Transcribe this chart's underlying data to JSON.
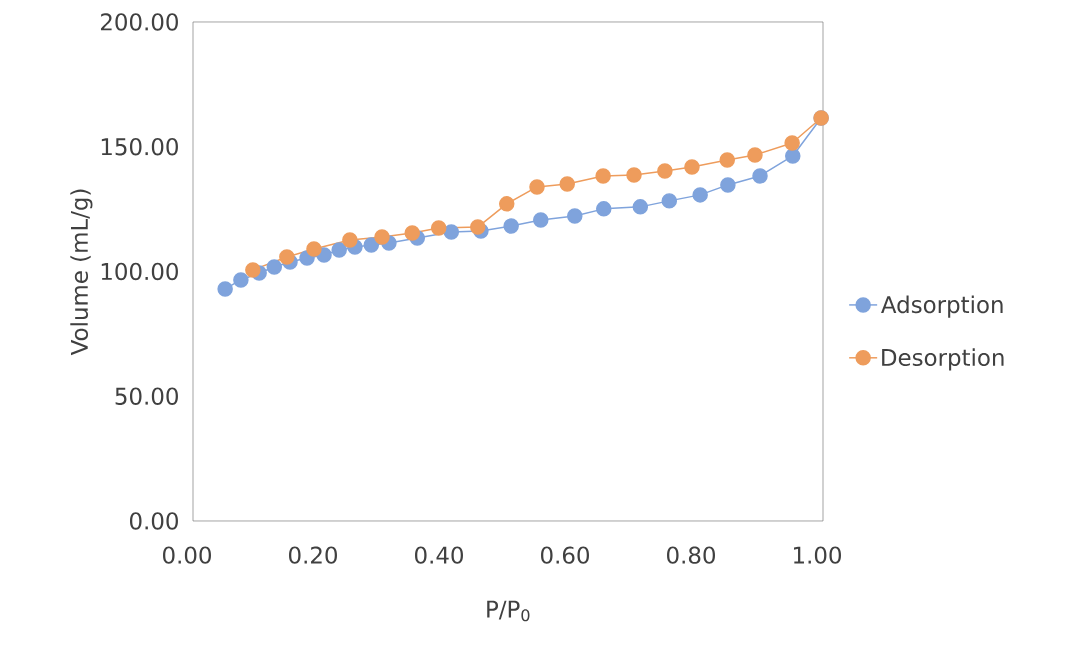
{
  "chart_data": {
    "type": "line",
    "xlabel": "P/P$_{0}$",
    "ylabel": "Volume (mL/g)",
    "xlim": [
      0,
      1
    ],
    "ylim": [
      0,
      200
    ],
    "xticks": [
      {
        "value": 0,
        "label": "0.00"
      },
      {
        "value": 0.2,
        "label": "0.20"
      },
      {
        "value": 0.4,
        "label": "0.40"
      },
      {
        "value": 0.6,
        "label": "0.60"
      },
      {
        "value": 0.8,
        "label": "0.80"
      },
      {
        "value": 1,
        "label": "1.00"
      }
    ],
    "yticks": [
      {
        "value": 0,
        "label": "0.00"
      },
      {
        "value": 50,
        "label": "50.00"
      },
      {
        "value": 100,
        "label": "100.00"
      },
      {
        "value": 150,
        "label": "150.00"
      },
      {
        "value": 200,
        "label": "200.00"
      }
    ],
    "grid": false,
    "legend": "right",
    "marker": "circle",
    "line_style": "solid",
    "series": [
      {
        "name": "Adsorption",
        "color": "#7fa3dc",
        "x": [
          0.051,
          0.076,
          0.105,
          0.129,
          0.154,
          0.181,
          0.208,
          0.232,
          0.257,
          0.283,
          0.311,
          0.356,
          0.41,
          0.457,
          0.505,
          0.552,
          0.606,
          0.652,
          0.71,
          0.756,
          0.805,
          0.849,
          0.9,
          0.952,
          0.997
        ],
        "values": [
          93.0,
          96.6,
          99.4,
          101.8,
          103.8,
          105.4,
          106.6,
          108.6,
          109.8,
          110.6,
          111.4,
          113.4,
          115.8,
          116.2,
          118.2,
          120.6,
          122.2,
          125.1,
          125.9,
          128.3,
          130.7,
          134.7,
          138.3,
          146.3,
          161.5
        ]
      },
      {
        "name": "Desorption",
        "color": "#ee9c5c",
        "x": [
          0.095,
          0.149,
          0.192,
          0.249,
          0.3,
          0.348,
          0.39,
          0.452,
          0.498,
          0.546,
          0.594,
          0.651,
          0.7,
          0.749,
          0.792,
          0.848,
          0.892,
          0.951,
          0.997
        ],
        "values": [
          100.6,
          105.8,
          109.0,
          112.6,
          113.8,
          115.4,
          117.4,
          117.8,
          127.1,
          133.9,
          135.1,
          138.3,
          138.7,
          140.3,
          141.9,
          144.7,
          146.7,
          151.5,
          161.5
        ]
      }
    ]
  }
}
